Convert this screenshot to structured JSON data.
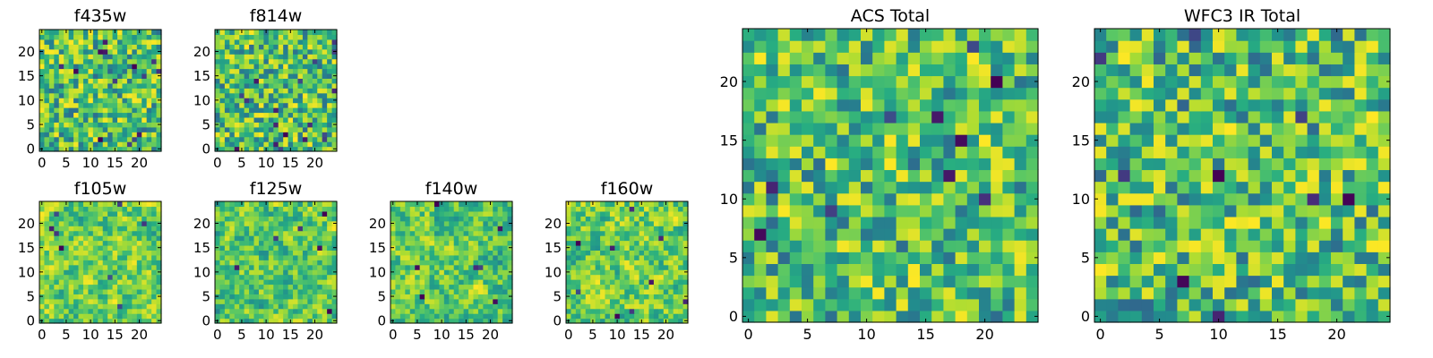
{
  "figure": {
    "colormap": "viridis",
    "colors": {
      "viridis_low": "#440154",
      "viridis_mid": "#21918c",
      "viridis_high": "#fde725",
      "frame": "#000000",
      "background": "#ffffff"
    }
  },
  "chart_data": [
    {
      "type": "heatmap",
      "title": "f435w",
      "grid_size": 25,
      "seed": 11,
      "smooth": 0,
      "xticks": [
        "0",
        "5",
        "10",
        "15",
        "20"
      ],
      "yticks": [
        "0",
        "5",
        "10",
        "15",
        "20"
      ],
      "xlim": [
        -0.5,
        24.5
      ],
      "ylim": [
        -0.5,
        24.5
      ],
      "dark_pixels": 14,
      "colorbar": false
    },
    {
      "type": "heatmap",
      "title": "f814w",
      "grid_size": 25,
      "seed": 23,
      "smooth": 0,
      "xticks": [
        "0",
        "5",
        "10",
        "15",
        "20"
      ],
      "yticks": [
        "0",
        "5",
        "10",
        "15",
        "20"
      ],
      "xlim": [
        -0.5,
        24.5
      ],
      "ylim": [
        -0.5,
        24.5
      ],
      "dark_pixels": 18,
      "colorbar": false
    },
    {
      "type": "heatmap",
      "title": "f105w",
      "grid_size": 25,
      "seed": 37,
      "smooth": 1,
      "xticks": [
        "0",
        "5",
        "10",
        "15",
        "20"
      ],
      "yticks": [
        "0",
        "5",
        "10",
        "15",
        "20"
      ],
      "xlim": [
        -0.5,
        24.5
      ],
      "ylim": [
        -0.5,
        24.5
      ],
      "dark_pixels": 8,
      "colorbar": false
    },
    {
      "type": "heatmap",
      "title": "f125w",
      "grid_size": 25,
      "seed": 41,
      "smooth": 1,
      "xticks": [
        "0",
        "5",
        "10",
        "15",
        "20"
      ],
      "yticks": [
        "0",
        "5",
        "10",
        "15",
        "20"
      ],
      "xlim": [
        -0.5,
        24.5
      ],
      "ylim": [
        -0.5,
        24.5
      ],
      "dark_pixels": 6,
      "colorbar": false
    },
    {
      "type": "heatmap",
      "title": "f140w",
      "grid_size": 25,
      "seed": 53,
      "smooth": 1,
      "xticks": [
        "0",
        "5",
        "10",
        "15",
        "20"
      ],
      "yticks": [
        "0",
        "5",
        "10",
        "15",
        "20"
      ],
      "xlim": [
        -0.5,
        24.5
      ],
      "ylim": [
        -0.5,
        24.5
      ],
      "dark_pixels": 7,
      "colorbar": false
    },
    {
      "type": "heatmap",
      "title": "f160w",
      "grid_size": 25,
      "seed": 67,
      "smooth": 1,
      "xticks": [
        "0",
        "5",
        "10",
        "15",
        "20"
      ],
      "yticks": [
        "0",
        "5",
        "10",
        "15",
        "20"
      ],
      "xlim": [
        -0.5,
        24.5
      ],
      "ylim": [
        -0.5,
        24.5
      ],
      "dark_pixels": 9,
      "colorbar": false
    },
    {
      "type": "heatmap",
      "title": "ACS Total",
      "grid_size": 25,
      "seed": 79,
      "smooth": 0,
      "xticks": [
        "0",
        "5",
        "10",
        "15",
        "20"
      ],
      "yticks": [
        "0",
        "5",
        "10",
        "15",
        "20"
      ],
      "xlim": [
        -0.5,
        24.5
      ],
      "ylim": [
        -0.5,
        24.5
      ],
      "dark_pixels": 10,
      "colorbar": false
    },
    {
      "type": "heatmap",
      "title": "WFC3 IR Total",
      "grid_size": 25,
      "seed": 97,
      "smooth": 0,
      "xticks": [
        "0",
        "5",
        "10",
        "15",
        "20"
      ],
      "yticks": [
        "0",
        "5",
        "10",
        "15",
        "20"
      ],
      "xlim": [
        -0.5,
        24.5
      ],
      "ylim": [
        -0.5,
        24.5
      ],
      "dark_pixels": 9,
      "colorbar": false
    }
  ]
}
